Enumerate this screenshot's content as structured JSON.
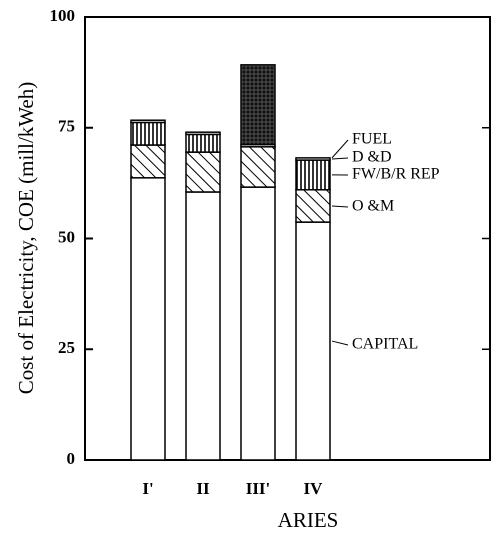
{
  "chart_data": {
    "type": "stacked_bar",
    "ylabel": "Cost of Electricity, COE (mill/kWeh)",
    "xlabel": "ARIES",
    "categories": [
      "I'",
      "II",
      "III'",
      "IV"
    ],
    "series": [
      {
        "name": "CAPITAL",
        "color": "#000000",
        "pattern": "none",
        "values": [
          63.7,
          60.5,
          61.6,
          53.7
        ]
      },
      {
        "name": "O &M",
        "color": "#000000",
        "pattern": "hatch",
        "values": [
          7.4,
          9.0,
          9.1,
          7.3
        ]
      },
      {
        "name": "FW/B/R REP",
        "color": "#000000",
        "pattern": "vertical",
        "values": [
          5.1,
          4.0,
          0,
          6.7
        ]
      },
      {
        "name": "D &D",
        "color": "#000000",
        "pattern": "none",
        "values": [
          0.5,
          0.5,
          0.5,
          0.5
        ]
      },
      {
        "name": "FUEL",
        "color": "#000000",
        "pattern": "grid",
        "values": [
          0,
          0,
          18.0,
          0
        ]
      }
    ],
    "ylim": [
      0,
      100
    ],
    "yticks": [
      0,
      25,
      50,
      75,
      100
    ]
  }
}
